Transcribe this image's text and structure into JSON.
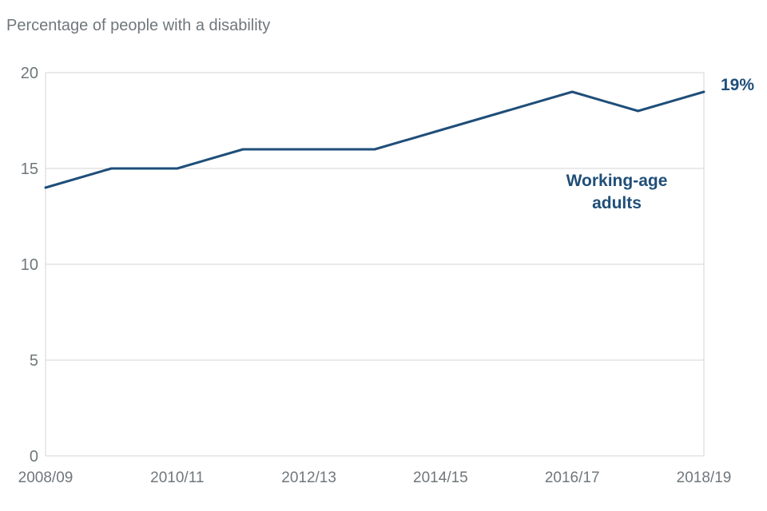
{
  "title": "Percentage of people with a disability",
  "colors": {
    "background": "#ffffff",
    "line": "#1f4e79",
    "annotation": "#1f4e79",
    "title_text": "#6f777b",
    "tick_text": "#6f777b",
    "gridline": "#d6d6d6"
  },
  "chart_data": {
    "type": "line",
    "title": "Percentage of people with a disability",
    "x": [
      "2008/09",
      "2009/10",
      "2010/11",
      "2011/12",
      "2012/13",
      "2013/14",
      "2014/15",
      "2015/16",
      "2016/17",
      "2017/18",
      "2018/19"
    ],
    "series": [
      {
        "name": "Working-age adults",
        "values": [
          14,
          15,
          15,
          16,
          16,
          16,
          17,
          18,
          19,
          18,
          19
        ]
      }
    ],
    "x_tick_labels": [
      "2008/09",
      "2010/11",
      "2012/13",
      "2014/15",
      "2016/17",
      "2018/19"
    ],
    "y_ticks": [
      0,
      5,
      10,
      15,
      20
    ],
    "ylim": [
      0,
      20
    ],
    "xlabel": "",
    "ylabel": "",
    "grid": "horizontal",
    "legend": "inline-annotation",
    "annotations": {
      "series_label_lines": [
        "Working-age",
        "adults"
      ],
      "end_value": "19%"
    }
  }
}
